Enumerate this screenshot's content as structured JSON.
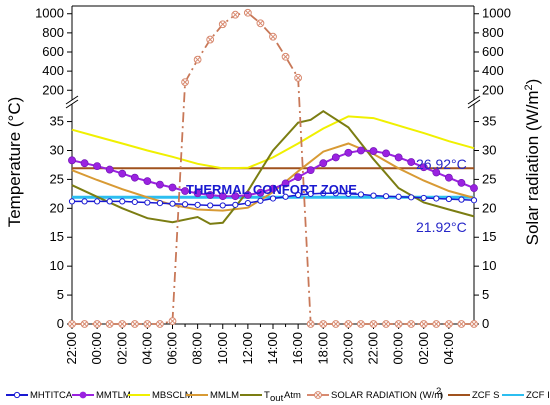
{
  "chart_data": {
    "type": "line",
    "title": "",
    "ylabel_left": "Temperature (°C)",
    "ylabel_right": "Solar radiation (W/m²)",
    "x_tick_labels": [
      "22:00",
      "00:00",
      "02:00",
      "04:00",
      "06:00",
      "08:00",
      "10:00",
      "12:00",
      "14:00",
      "16:00",
      "18:00",
      "20:00",
      "22:00",
      "00:00",
      "02:00",
      "04:00"
    ],
    "x_hours": [
      22,
      54
    ],
    "temp_axis": {
      "range": [
        0,
        37
      ],
      "ticks": [
        0,
        5,
        10,
        15,
        20,
        25,
        30,
        35
      ]
    },
    "solar_axis": {
      "lower_range": [
        0,
        37
      ],
      "lower_ticks": [
        0,
        5,
        10,
        15,
        20,
        25,
        30,
        35
      ],
      "upper_range": [
        140,
        1060
      ],
      "upper_ticks": [
        200,
        400,
        600,
        800,
        1000
      ]
    },
    "annotations": {
      "zone_label": "THERMAL CONFORT ZONE",
      "upper_limit": "26.92°C",
      "lower_limit": "21.92°C"
    },
    "series": [
      {
        "name": "MHTITCA",
        "color": "#1a1ad2",
        "marker": "open-circle",
        "x": [
          22,
          23,
          24,
          25,
          26,
          27,
          28,
          29,
          30,
          31,
          32,
          33,
          34,
          35,
          36,
          37,
          38,
          39,
          40,
          41,
          42,
          43,
          44,
          45,
          46,
          47,
          48,
          49,
          50,
          51,
          52,
          53,
          54
        ],
        "y": [
          21.2,
          21.2,
          21.2,
          21.2,
          21.2,
          21.1,
          21.0,
          20.9,
          20.8,
          20.7,
          20.6,
          20.5,
          20.5,
          20.6,
          20.9,
          21.3,
          21.7,
          22.0,
          22.3,
          22.5,
          22.6,
          22.6,
          22.5,
          22.4,
          22.2,
          22.1,
          22.0,
          21.9,
          21.8,
          21.7,
          21.6,
          21.5,
          21.4
        ]
      },
      {
        "name": "MMTLM",
        "color": "#9a22e0",
        "marker": "filled-circle",
        "x": [
          22,
          23,
          24,
          25,
          26,
          27,
          28,
          29,
          30,
          31,
          32,
          33,
          34,
          35,
          36,
          37,
          38,
          39,
          40,
          41,
          42,
          43,
          44,
          45,
          46,
          47,
          48,
          49,
          50,
          51,
          52,
          53,
          54
        ],
        "y": [
          28.3,
          27.8,
          27.3,
          26.7,
          26.0,
          25.3,
          24.7,
          24.1,
          23.6,
          23.0,
          22.6,
          22.3,
          22.1,
          22.1,
          22.3,
          22.7,
          23.4,
          24.3,
          25.4,
          26.6,
          27.8,
          28.8,
          29.6,
          30.0,
          29.9,
          29.5,
          28.8,
          28.0,
          27.1,
          26.2,
          25.3,
          24.4,
          23.5
        ]
      },
      {
        "name": "MBSCLM",
        "color": "#f0f000",
        "marker": "none",
        "x": [
          22,
          24,
          26,
          28,
          30,
          32,
          34,
          36,
          38,
          40,
          42,
          44,
          46,
          48,
          50,
          52,
          54
        ],
        "y": [
          33.6,
          32.4,
          31.2,
          30.0,
          28.9,
          27.7,
          26.9,
          27.0,
          28.8,
          31.2,
          33.8,
          35.9,
          35.6,
          34.3,
          33.0,
          31.6,
          30.4
        ]
      },
      {
        "name": "MMLM",
        "color": "#d89a34",
        "marker": "none",
        "x": [
          22,
          24,
          26,
          28,
          30,
          32,
          34,
          36,
          38,
          40,
          42,
          44,
          46,
          48,
          50,
          52,
          54
        ],
        "y": [
          26.6,
          24.9,
          23.3,
          21.9,
          20.6,
          19.8,
          19.6,
          20.1,
          22.8,
          26.4,
          29.8,
          31.2,
          29.4,
          26.9,
          24.8,
          23.0,
          21.8
        ]
      },
      {
        "name": "T_out Atm",
        "color": "#7b7d12",
        "marker": "none",
        "x": [
          22,
          24,
          26,
          28,
          30,
          32,
          33,
          34,
          36,
          38,
          40,
          41,
          42,
          44,
          46,
          48,
          50,
          52,
          54
        ],
        "y": [
          24.0,
          22.0,
          20.0,
          18.3,
          17.6,
          18.5,
          17.3,
          17.5,
          23.0,
          30.0,
          34.8,
          35.3,
          36.8,
          34.0,
          28.5,
          23.5,
          21.0,
          19.8,
          18.6
        ]
      },
      {
        "name": "SOLAR RADIATION (W/m²)",
        "color": "#c87858",
        "marker": "x-circle",
        "x": [
          22,
          23,
          24,
          25,
          26,
          27,
          28,
          29,
          30,
          31,
          32,
          33,
          34,
          35,
          36,
          37,
          38,
          39,
          40,
          41,
          42,
          43,
          44,
          45,
          46,
          47,
          48,
          49,
          50,
          51,
          52,
          53,
          54
        ],
        "y": [
          0,
          0,
          0,
          0,
          0,
          0,
          0,
          0,
          0.5,
          285,
          520,
          730,
          890,
          990,
          1010,
          900,
          760,
          550,
          330,
          0,
          0,
          0,
          0,
          0,
          0,
          0,
          0,
          0,
          0,
          0,
          0,
          0,
          0
        ]
      },
      {
        "name": "ZCF S",
        "color": "#a0521e",
        "marker": "none",
        "x": [
          22,
          54
        ],
        "y": [
          26.92,
          26.92
        ]
      },
      {
        "name": "ZCF I",
        "color": "#2cbef0",
        "marker": "none",
        "x": [
          22,
          54
        ],
        "y": [
          21.92,
          21.92
        ]
      }
    ],
    "legend": {
      "position": "bottom",
      "entries": [
        "MHTITCA",
        "MMTLM",
        "MBSCLM",
        "MMLM",
        "T",
        "out",
        "Atm",
        "SOLAR RADIATION (W/m",
        "2",
        ")",
        "ZCF S",
        "ZCF I"
      ]
    },
    "grid": false
  }
}
